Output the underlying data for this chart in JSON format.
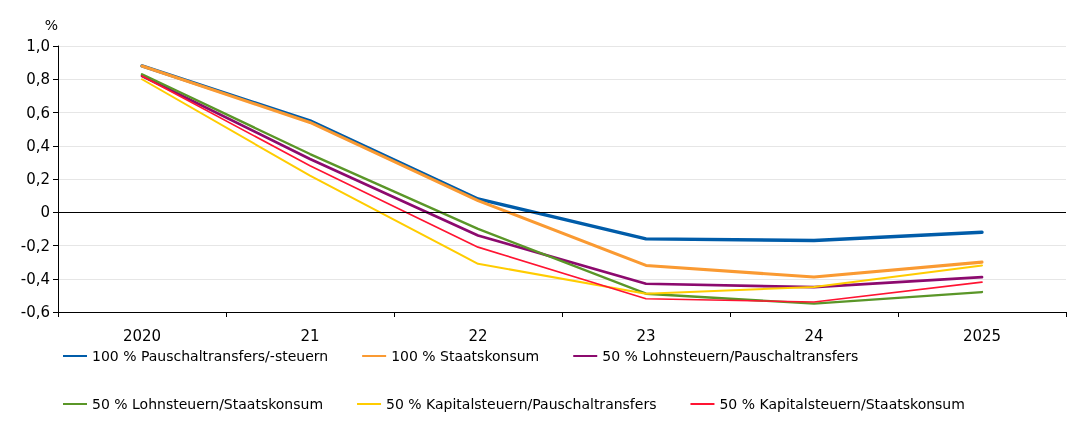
{
  "chart_data": {
    "type": "line",
    "ylabel": "%",
    "categories": [
      "2020",
      "21",
      "22",
      "23",
      "24",
      "2025"
    ],
    "ylim": [
      -0.6,
      1.0
    ],
    "yticks": [
      {
        "value": -0.6,
        "label": "-0,6"
      },
      {
        "value": -0.4,
        "label": "-0,4"
      },
      {
        "value": -0.2,
        "label": "-0,2"
      },
      0,
      {
        "value": 0.2,
        "label": "0,2"
      },
      {
        "value": 0.4,
        "label": "0,4"
      },
      {
        "value": 0.6,
        "label": "0,6"
      },
      {
        "value": 0.8,
        "label": "0,8"
      },
      {
        "value": 1.0,
        "label": "1,0"
      }
    ],
    "grid": "y",
    "legend": "bottom",
    "marker": "none",
    "line_style": "solid",
    "ref_lines": [
      {
        "axis": "y",
        "value": 0,
        "color": "#000000"
      }
    ],
    "series": [
      {
        "name": "100 % Pauschaltransfers/-steuern",
        "color": "#005ca9",
        "values": [
          0.88,
          0.55,
          0.08,
          -0.16,
          -0.17,
          -0.12
        ]
      },
      {
        "name": "100 % Staatskonsum",
        "color": "#fa9a32",
        "values": [
          0.88,
          0.54,
          0.07,
          -0.32,
          -0.39,
          -0.3
        ]
      },
      {
        "name": "50 % Lohnsteuern/Pauschaltransfers",
        "color": "#8c0a6e",
        "values": [
          0.82,
          0.32,
          -0.14,
          -0.43,
          -0.45,
          -0.39
        ]
      },
      {
        "name": "50 % Lohnsteuern/Staatskonsum",
        "color": "#5a9628",
        "values": [
          0.83,
          0.35,
          -0.1,
          -0.49,
          -0.55,
          -0.48
        ]
      },
      {
        "name": "50 % Kapitalsteuern/Pauschaltransfers",
        "color": "#ffcc00",
        "values": [
          0.8,
          0.22,
          -0.31,
          -0.49,
          -0.45,
          -0.32
        ]
      },
      {
        "name": "50 % Kapitalsteuern/Staatskonsum",
        "color": "#ff1432",
        "values": [
          0.82,
          0.28,
          -0.21,
          -0.52,
          -0.54,
          -0.42
        ]
      }
    ]
  }
}
